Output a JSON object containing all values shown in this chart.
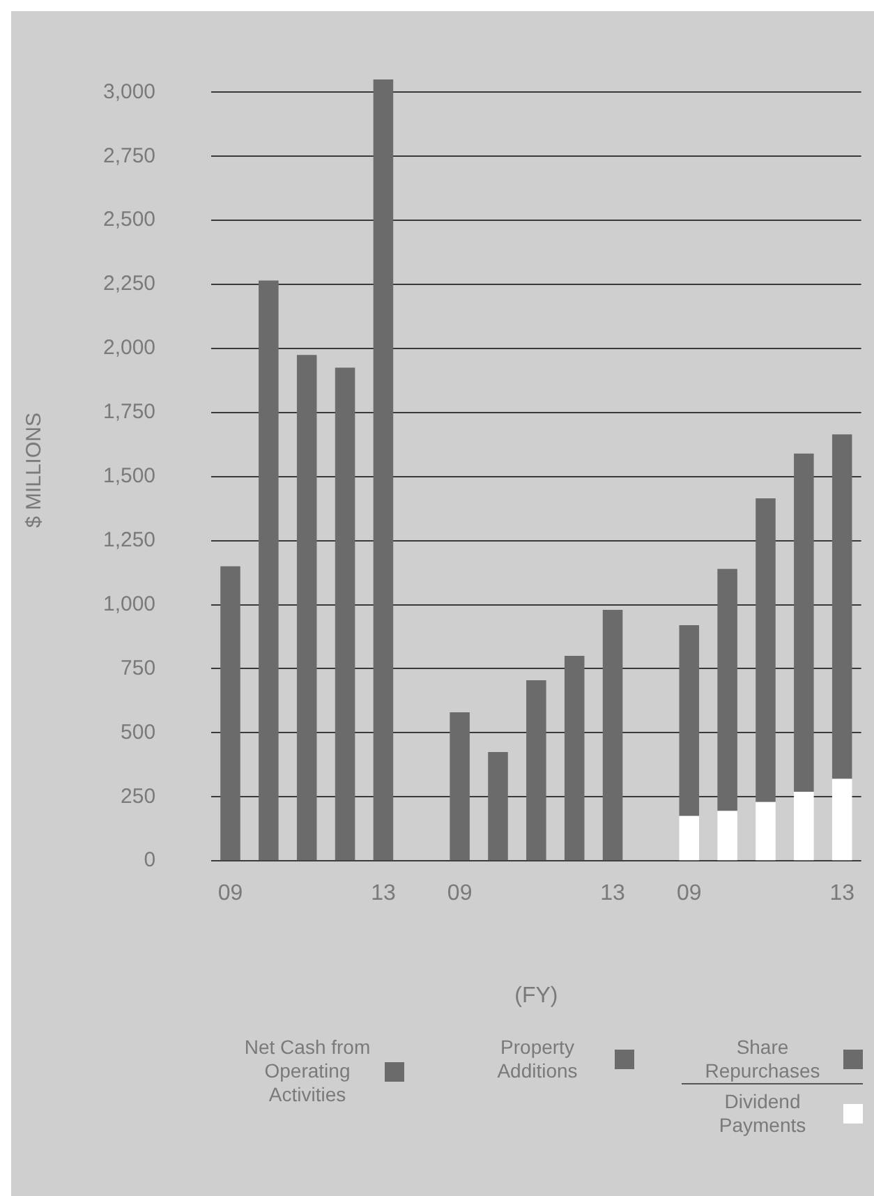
{
  "chart_data": {
    "type": "bar",
    "xlabel": "(FY)",
    "ylabel": "$ MILLIONS",
    "categories": [
      "09",
      null,
      null,
      null,
      "13",
      null,
      "09",
      null,
      null,
      null,
      "13",
      null,
      "09",
      null,
      null,
      null,
      "13"
    ],
    "series": [
      {
        "name": "Net Cash from Operating Activities",
        "color": "#6b6b6b",
        "values": [
          1150,
          2265,
          1975,
          1925,
          3050,
          null,
          null,
          null,
          null,
          null,
          null,
          null,
          null,
          null,
          null,
          null,
          null
        ]
      },
      {
        "name": "Property Additions",
        "color": "#6b6b6b",
        "values": [
          null,
          null,
          null,
          null,
          null,
          null,
          580,
          425,
          705,
          800,
          980,
          null,
          null,
          null,
          null,
          null,
          null
        ]
      },
      {
        "name": "Dividend Payments",
        "color": "#ffffff",
        "values": [
          null,
          null,
          null,
          null,
          null,
          null,
          null,
          null,
          null,
          null,
          null,
          null,
          175,
          195,
          230,
          270,
          320
        ]
      },
      {
        "name": "Share Repurchases",
        "color": "#6b6b6b",
        "values": [
          null,
          null,
          null,
          null,
          null,
          null,
          null,
          null,
          null,
          null,
          null,
          null,
          745,
          945,
          1185,
          1320,
          1345
        ]
      }
    ],
    "stacked": true,
    "ylim": [
      0,
      3050
    ],
    "yticks": [
      0,
      250,
      500,
      750,
      {
        "value": 1000,
        "label": "1,000"
      },
      {
        "value": 1250,
        "label": "1,250"
      },
      {
        "value": 1500,
        "label": "1,500"
      },
      {
        "value": 1750,
        "label": "1,750"
      },
      {
        "value": 2000,
        "label": "2,000"
      },
      {
        "value": 2250,
        "label": "2,250"
      },
      {
        "value": 2500,
        "label": "2,500"
      },
      {
        "value": 2750,
        "label": "2,750"
      },
      {
        "value": 3000,
        "label": "3,000"
      }
    ],
    "grid": "y",
    "legend": "bottom"
  }
}
